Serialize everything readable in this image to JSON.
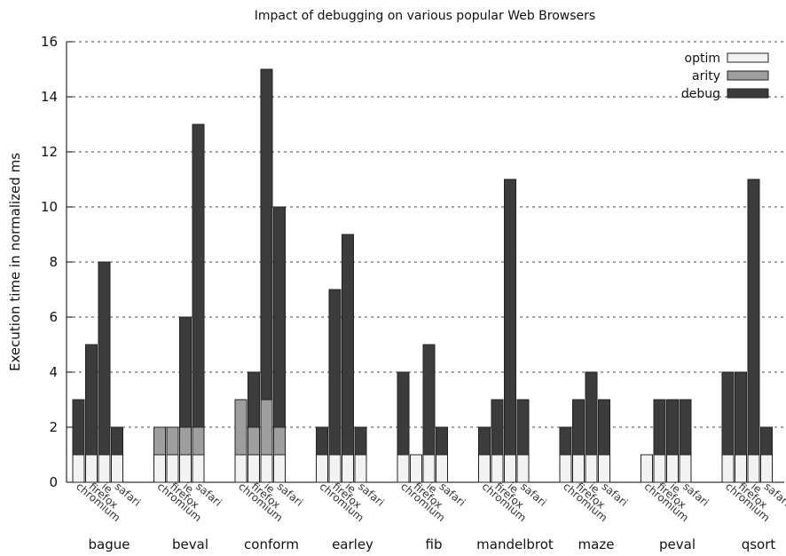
{
  "chart_data": {
    "type": "bar",
    "stacked": true,
    "title": "Impact of debugging on various popular Web Browsers",
    "ylabel": "Execution time in normalized ms",
    "xlabel": "",
    "ylim": [
      0,
      16
    ],
    "yticks": [
      0,
      2,
      4,
      6,
      8,
      10,
      12,
      14,
      16
    ],
    "grid": true,
    "legend_position": "top-right",
    "browsers": [
      "chromium",
      "firefox",
      "ie",
      "safari"
    ],
    "categories": [
      "bague",
      "beval",
      "conform",
      "earley",
      "fib",
      "mandelbrot",
      "maze",
      "peval",
      "qsort"
    ],
    "series": [
      {
        "name": "optim",
        "color": "#f2f2f2",
        "values": [
          [
            1,
            1,
            1,
            1
          ],
          [
            1,
            1,
            1,
            1
          ],
          [
            1,
            1,
            1,
            1
          ],
          [
            1,
            1,
            1,
            1
          ],
          [
            1,
            1,
            1,
            1
          ],
          [
            1,
            1,
            1,
            1
          ],
          [
            1,
            1,
            1,
            1
          ],
          [
            1,
            1,
            1,
            1
          ],
          [
            1,
            1,
            1,
            1
          ]
        ]
      },
      {
        "name": "arity",
        "color": "#9e9e9e",
        "values": [
          [
            1,
            1,
            1,
            1
          ],
          [
            2,
            2,
            2,
            2
          ],
          [
            3,
            2,
            3,
            2
          ],
          [
            1,
            1,
            1,
            1
          ],
          [
            1,
            1,
            1,
            1
          ],
          [
            1,
            1,
            1,
            1
          ],
          [
            1,
            1,
            1,
            1
          ],
          [
            1,
            1,
            1,
            1
          ],
          [
            1,
            1,
            1,
            1
          ]
        ]
      },
      {
        "name": "debug",
        "color": "#3c3c3c",
        "values": [
          [
            3,
            5,
            8,
            2
          ],
          [
            2,
            2,
            6,
            13
          ],
          [
            3,
            4,
            15,
            10
          ],
          [
            2,
            7,
            9,
            2
          ],
          [
            4,
            1,
            5,
            2
          ],
          [
            2,
            3,
            11,
            3
          ],
          [
            2,
            3,
            4,
            3
          ],
          [
            1,
            3,
            3,
            3
          ],
          [
            4,
            4,
            11,
            2
          ]
        ]
      }
    ]
  }
}
